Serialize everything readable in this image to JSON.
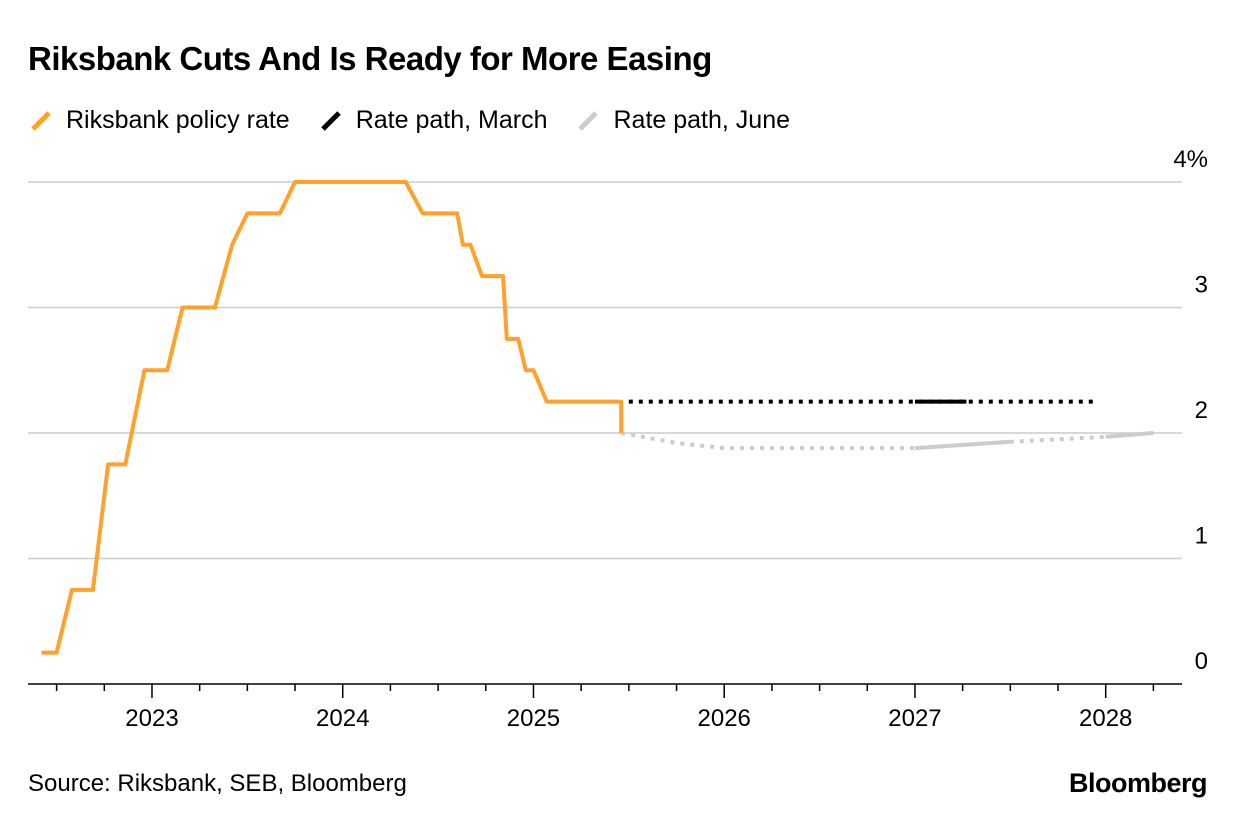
{
  "header": {
    "title": "Riksbank Cuts And Is Ready for More Easing"
  },
  "footer": {
    "source": "Source: Riksbank, SEB, Bloomberg",
    "brand": "Bloomberg"
  },
  "colors": {
    "policy": "#ffa12b",
    "march": "#000000",
    "june": "#cccccc",
    "grid": "#cccccc",
    "axis": "#000000"
  },
  "chart_data": {
    "type": "line",
    "title": "Riksbank Cuts And Is Ready for More Easing",
    "xlabel": "",
    "ylabel": "",
    "xlim": [
      2022.35,
      2028.4
    ],
    "ylim": [
      0,
      4
    ],
    "x_ticks": [
      2023,
      2024,
      2025,
      2026,
      2027,
      2028
    ],
    "x_tick_labels": [
      "2023",
      "2024",
      "2025",
      "2026",
      "2027",
      "2028"
    ],
    "y_ticks": [
      0,
      1,
      2,
      3,
      4
    ],
    "y_tick_labels": [
      "0",
      "1",
      "2",
      "3",
      "4%"
    ],
    "grid": true,
    "legend_position": "top-left",
    "series": [
      {
        "name": "Riksbank policy rate",
        "color": "#ffa12b",
        "style": "solid",
        "points": [
          [
            2022.42,
            0.25
          ],
          [
            2022.5,
            0.25
          ],
          [
            2022.58,
            0.75
          ],
          [
            2022.69,
            0.75
          ],
          [
            2022.77,
            1.75
          ],
          [
            2022.86,
            1.75
          ],
          [
            2022.96,
            2.5
          ],
          [
            2023.08,
            2.5
          ],
          [
            2023.16,
            3.0
          ],
          [
            2023.33,
            3.0
          ],
          [
            2023.42,
            3.5
          ],
          [
            2023.5,
            3.75
          ],
          [
            2023.67,
            3.75
          ],
          [
            2023.75,
            4.0
          ],
          [
            2024.33,
            4.0
          ],
          [
            2024.42,
            3.75
          ],
          [
            2024.6,
            3.75
          ],
          [
            2024.63,
            3.5
          ],
          [
            2024.67,
            3.5
          ],
          [
            2024.73,
            3.25
          ],
          [
            2024.84,
            3.25
          ],
          [
            2024.86,
            2.75
          ],
          [
            2024.92,
            2.75
          ],
          [
            2024.96,
            2.5
          ],
          [
            2025.0,
            2.5
          ],
          [
            2025.07,
            2.25
          ],
          [
            2025.46,
            2.25
          ],
          [
            2025.46,
            2.0
          ]
        ]
      },
      {
        "name": "Rate path, March",
        "color": "#000000",
        "style": "dotted",
        "points": [
          [
            2025.5,
            2.25
          ],
          [
            2027.0,
            2.25
          ],
          [
            2027.27,
            2.25
          ],
          [
            2027.95,
            2.25
          ]
        ]
      },
      {
        "name": "Rate path, June",
        "color": "#cccccc",
        "style": "dotted",
        "points": [
          [
            2025.46,
            2.0
          ],
          [
            2025.75,
            1.92
          ],
          [
            2026.0,
            1.88
          ],
          [
            2026.5,
            1.88
          ],
          [
            2027.0,
            1.88
          ],
          [
            2027.5,
            1.93
          ],
          [
            2028.0,
            1.97
          ],
          [
            2028.25,
            2.0
          ]
        ]
      }
    ]
  }
}
